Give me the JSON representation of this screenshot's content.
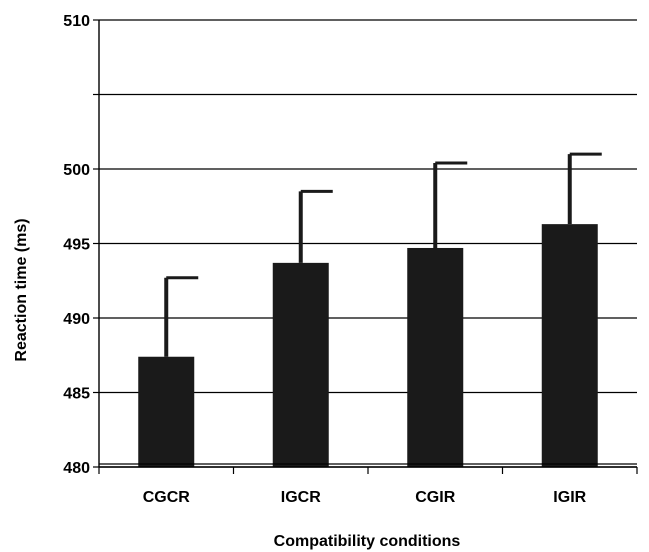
{
  "chart_data": {
    "type": "bar",
    "title": "",
    "xlabel": "Compatibility conditions",
    "ylabel": "Reaction time (ms)",
    "categories": [
      "CGCR",
      "IGCR",
      "CGIR",
      "IGIR"
    ],
    "values": [
      487.4,
      493.7,
      494.7,
      496.3
    ],
    "error_upper": [
      5.3,
      4.8,
      5.7,
      4.7
    ],
    "ylim": [
      480,
      510
    ],
    "yticks": [
      480,
      485,
      490,
      495,
      500,
      505,
      510
    ],
    "ytick_labels": [
      "480",
      "485",
      "490",
      "495",
      "500",
      "",
      "510"
    ],
    "grid": true,
    "legend": "none",
    "colors": {
      "bar": "#1a1a1a",
      "axis": "#000000"
    }
  }
}
